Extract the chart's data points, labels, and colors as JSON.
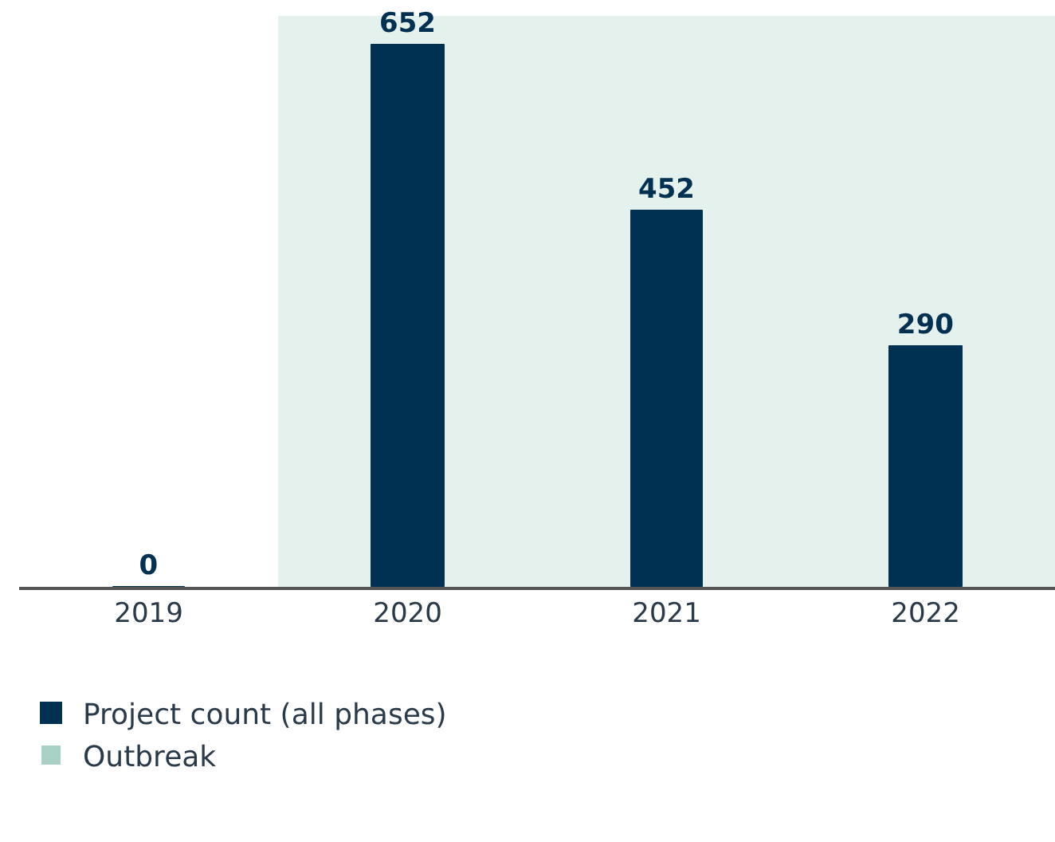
{
  "chart_data": {
    "type": "bar",
    "categories": [
      "2019",
      "2020",
      "2021",
      "2022"
    ],
    "series": [
      {
        "name": "Project count (all phases)",
        "color": "#003152",
        "values": [
          0,
          652,
          452,
          290
        ]
      }
    ],
    "bands": [
      {
        "axis": "x",
        "from": "2020",
        "to": "2022",
        "label": "Outbreak",
        "color": "#a8d0c4"
      }
    ],
    "data_labels": true,
    "grid": false,
    "legend": "bottom left"
  }
}
